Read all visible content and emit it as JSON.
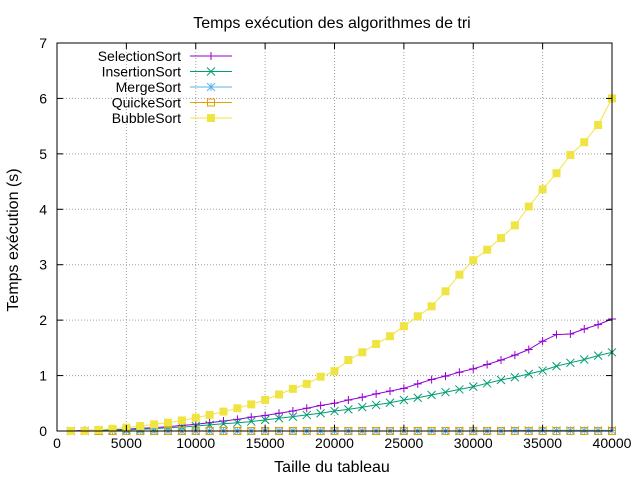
{
  "chart_data": {
    "type": "line",
    "title": "Temps exécution des algorithmes de tri",
    "xlabel": "Taille du tableau",
    "ylabel": "Temps exécution (s)",
    "xlim": [
      0,
      40000
    ],
    "ylim": [
      0,
      7
    ],
    "x_ticks": [
      0,
      5000,
      10000,
      15000,
      20000,
      25000,
      30000,
      35000,
      40000
    ],
    "y_ticks": [
      0,
      1,
      2,
      3,
      4,
      5,
      6,
      7
    ],
    "grid": true,
    "legend_position": "top-left",
    "x": [
      1000,
      2000,
      3000,
      4000,
      5000,
      6000,
      7000,
      8000,
      9000,
      10000,
      11000,
      12000,
      13000,
      14000,
      15000,
      16000,
      17000,
      18000,
      19000,
      20000,
      21000,
      22000,
      23000,
      24000,
      25000,
      26000,
      27000,
      28000,
      29000,
      30000,
      31000,
      32000,
      33000,
      34000,
      35000,
      36000,
      37000,
      38000,
      39000,
      40000
    ],
    "series": [
      {
        "name": "SelectionSort",
        "color": "#9400d3",
        "marker": "plus",
        "values": [
          0.0,
          0.01,
          0.01,
          0.02,
          0.03,
          0.05,
          0.06,
          0.08,
          0.1,
          0.12,
          0.15,
          0.18,
          0.21,
          0.25,
          0.28,
          0.32,
          0.36,
          0.41,
          0.46,
          0.5,
          0.56,
          0.61,
          0.67,
          0.72,
          0.77,
          0.85,
          0.93,
          0.99,
          1.06,
          1.12,
          1.2,
          1.28,
          1.37,
          1.47,
          1.62,
          1.74,
          1.75,
          1.84,
          1.92,
          2.02
        ]
      },
      {
        "name": "InsertionSort",
        "color": "#009e73",
        "marker": "cross",
        "values": [
          0.0,
          0.0,
          0.01,
          0.01,
          0.02,
          0.03,
          0.04,
          0.06,
          0.07,
          0.09,
          0.11,
          0.13,
          0.15,
          0.17,
          0.2,
          0.23,
          0.26,
          0.29,
          0.32,
          0.36,
          0.39,
          0.43,
          0.47,
          0.51,
          0.56,
          0.6,
          0.65,
          0.7,
          0.75,
          0.8,
          0.86,
          0.92,
          0.97,
          1.03,
          1.09,
          1.17,
          1.23,
          1.29,
          1.36,
          1.42
        ]
      },
      {
        "name": "MergeSort",
        "color": "#56b4e9",
        "marker": "star",
        "values": [
          0.0,
          0.0,
          0.0,
          0.0,
          0.0,
          0.0,
          0.0,
          0.0,
          0.0,
          0.0,
          0.0,
          0.0,
          0.0,
          0.0,
          0.0,
          0.0,
          0.0,
          0.0,
          0.0,
          0.0,
          0.0,
          0.0,
          0.0,
          0.0,
          0.0,
          0.0,
          0.0,
          0.0,
          0.0,
          0.0,
          0.0,
          0.0,
          0.01,
          0.01,
          0.01,
          0.01,
          0.01,
          0.01,
          0.01,
          0.01
        ]
      },
      {
        "name": "QuickeSort",
        "color": "#e69f00",
        "marker": "square-open",
        "values": [
          0.0,
          0.0,
          0.0,
          0.0,
          0.0,
          0.0,
          0.0,
          0.0,
          0.0,
          0.0,
          0.0,
          0.0,
          0.0,
          0.0,
          0.0,
          0.0,
          0.0,
          0.0,
          0.0,
          0.0,
          0.0,
          0.0,
          0.0,
          0.0,
          0.0,
          0.0,
          0.0,
          0.0,
          0.0,
          0.0,
          0.0,
          0.0,
          0.0,
          0.0,
          0.0,
          0.0,
          0.0,
          0.0,
          0.0,
          0.0
        ]
      },
      {
        "name": "BubbleSort",
        "color": "#f0e442",
        "marker": "square-filled",
        "values": [
          0.0,
          0.0,
          0.02,
          0.04,
          0.06,
          0.09,
          0.12,
          0.15,
          0.19,
          0.24,
          0.29,
          0.35,
          0.41,
          0.48,
          0.56,
          0.66,
          0.76,
          0.85,
          0.98,
          1.08,
          1.28,
          1.42,
          1.57,
          1.71,
          1.89,
          2.07,
          2.25,
          2.52,
          2.82,
          3.08,
          3.27,
          3.48,
          3.71,
          4.05,
          4.36,
          4.65,
          4.98,
          5.21,
          5.52,
          6.0
        ]
      }
    ]
  }
}
